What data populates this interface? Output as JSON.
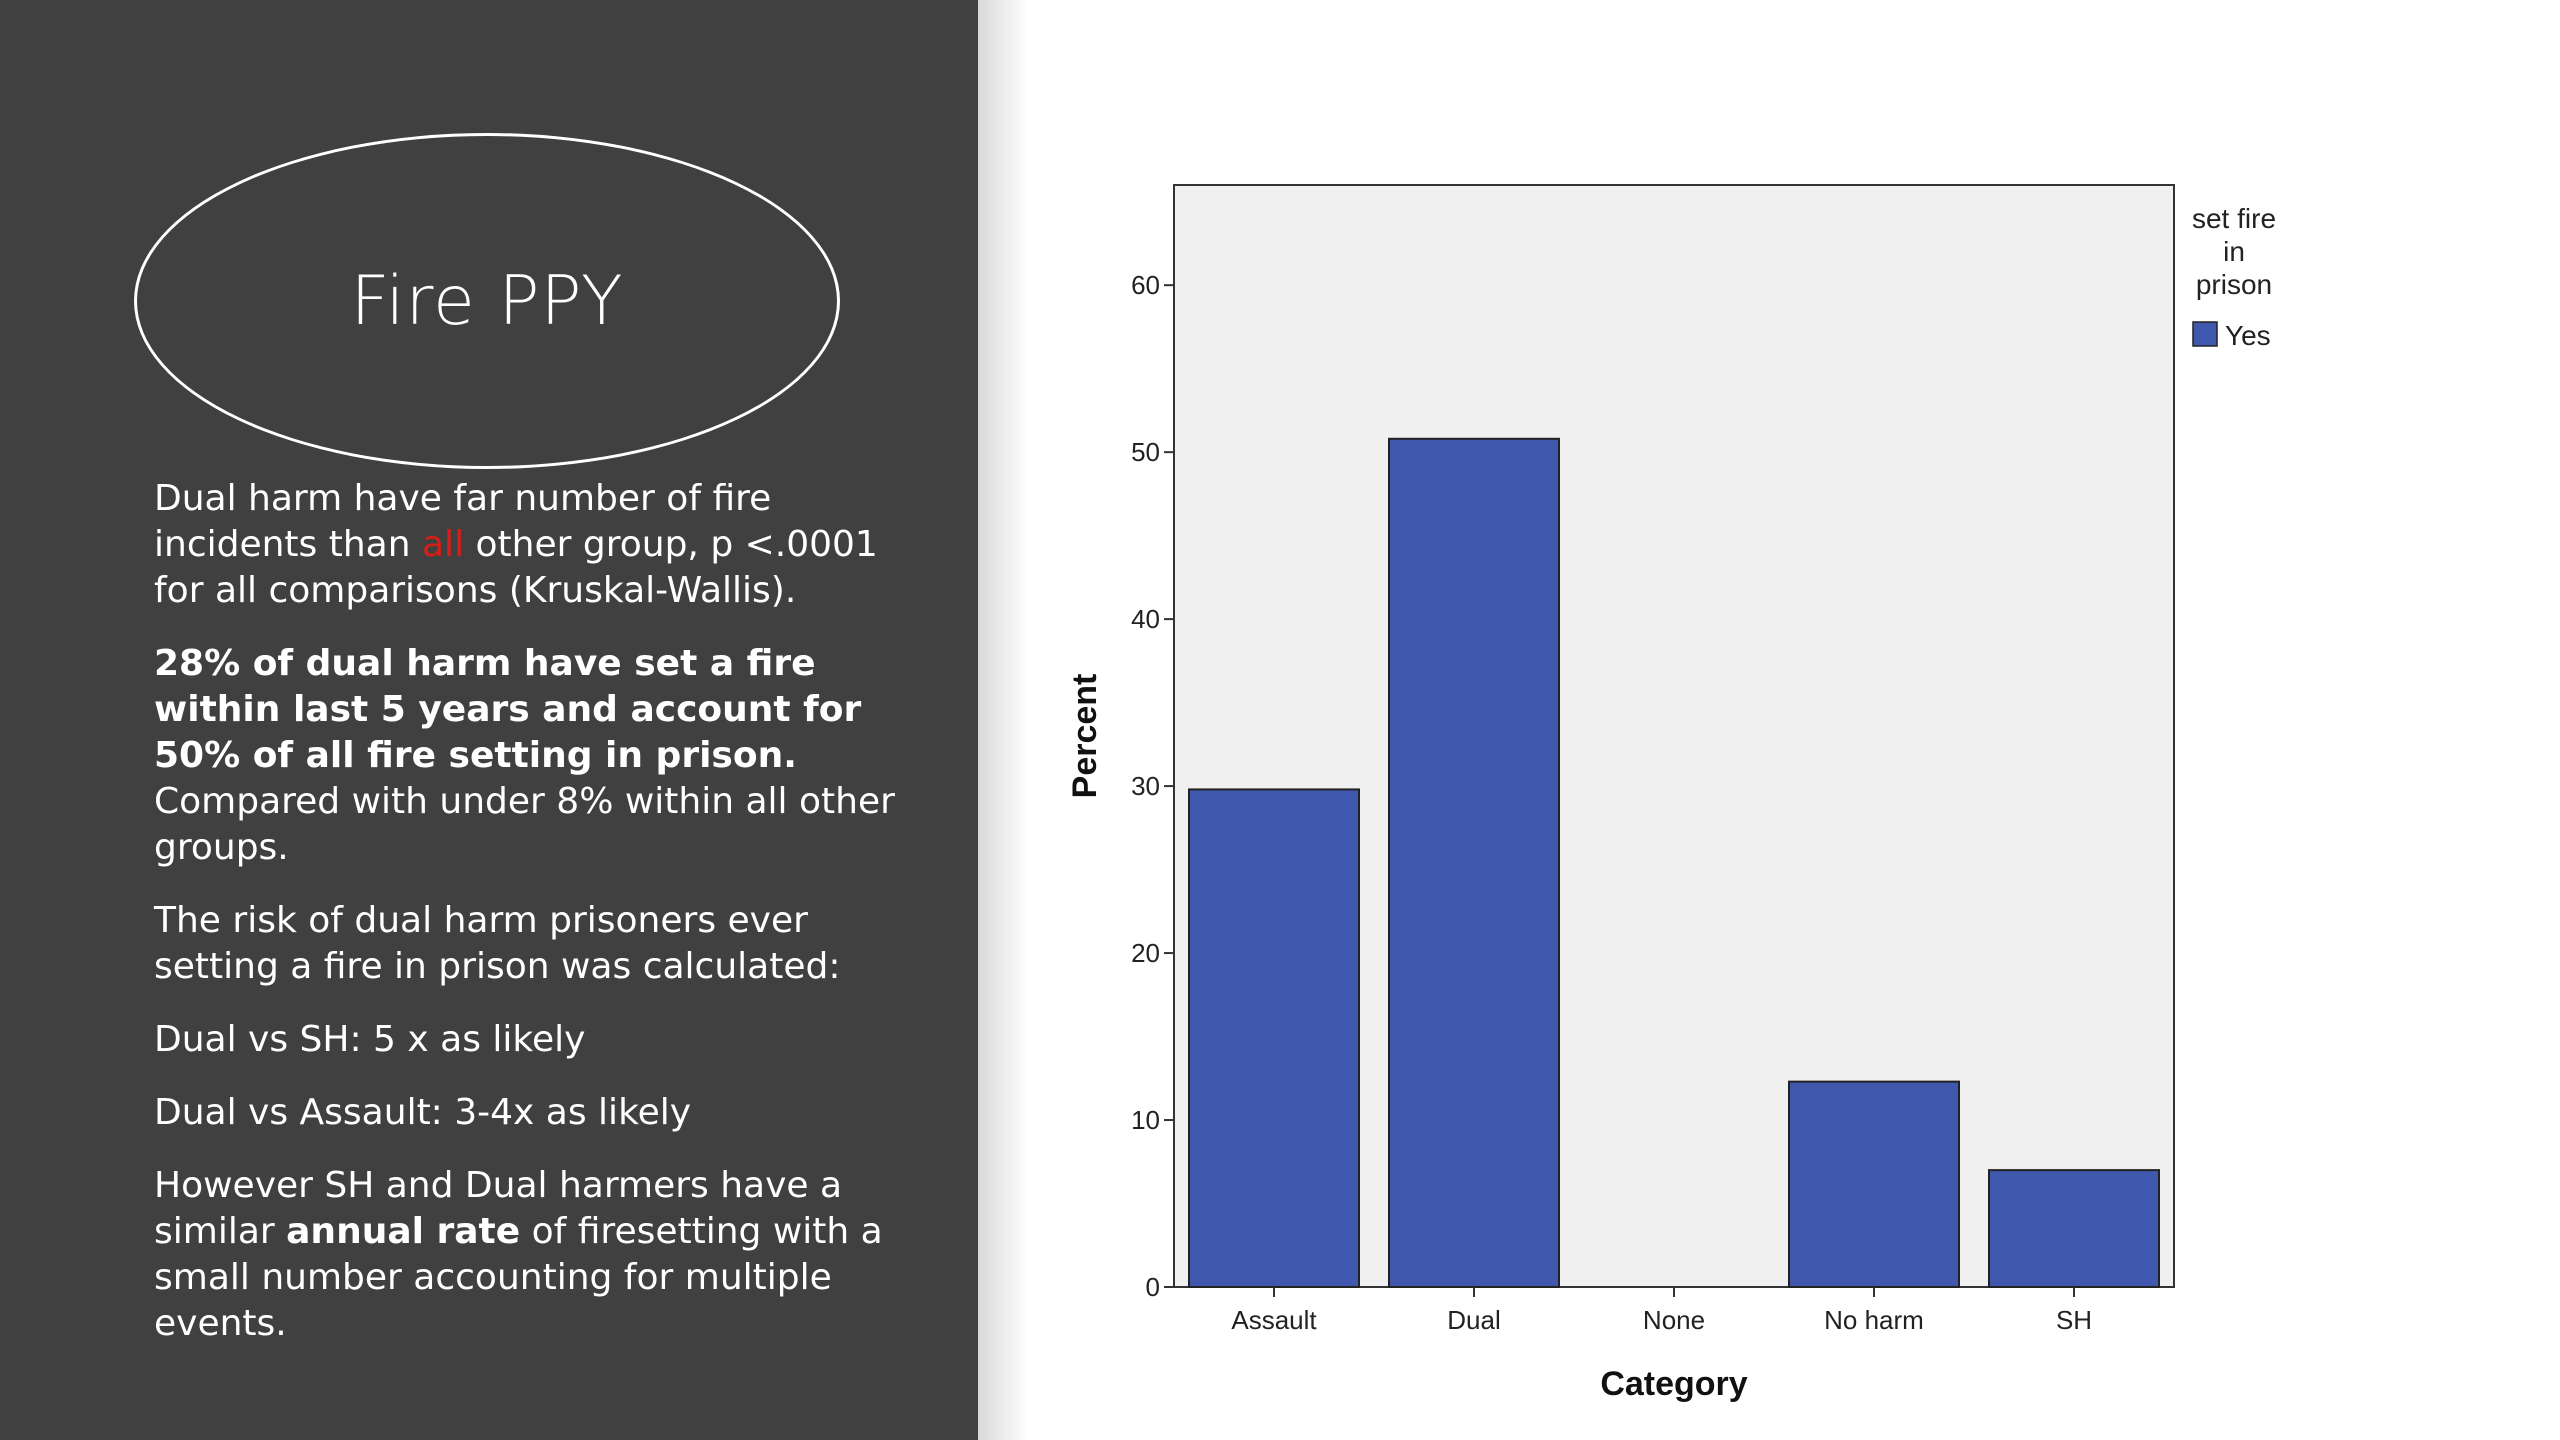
{
  "slide": {
    "title": "Fire PPY",
    "paragraphs": {
      "p1_a": "Dual harm have far number of fire incidents than ",
      "p1_highlight": "all",
      "p1_b": " other group, p <.0001 for all comparisons (Kruskal-Wallis).",
      "p2_bold": "28% of dual harm have set a fire within last 5 years and account for 50% of all fire setting in prison.",
      "p2_rest": "   Compared with under 8% within all other groups.",
      "p3": "The risk of dual harm prisoners ever setting a fire in prison was calculated:",
      "p4": "Dual vs SH: 5 x as likely",
      "p5": "Dual vs Assault: 3-4x as likely",
      "p6_a": "However SH and Dual harmers have a similar ",
      "p6_bold": "annual rate",
      "p6_b": " of firesetting with a small number accounting for multiple events."
    },
    "colors": {
      "left_panel": "#404040",
      "highlight": "#d91e18"
    }
  },
  "chart_data": {
    "type": "bar",
    "categories": [
      "Assault",
      "Dual",
      "None",
      "No harm",
      "SH"
    ],
    "series": [
      {
        "name": "Yes",
        "values": [
          29.8,
          50.8,
          0,
          12.3,
          7.0
        ],
        "color": "#3f57ad"
      }
    ],
    "xlabel": "Category",
    "ylabel": "Percent",
    "ylim": [
      0,
      66
    ],
    "yticks": [
      0,
      10,
      20,
      30,
      40,
      50,
      60
    ],
    "legend_title_lines": [
      "set fire",
      "in",
      "prison"
    ],
    "legend_placement": "top-right outside plot",
    "plot_background": "#f0f0f0",
    "grid": false
  }
}
